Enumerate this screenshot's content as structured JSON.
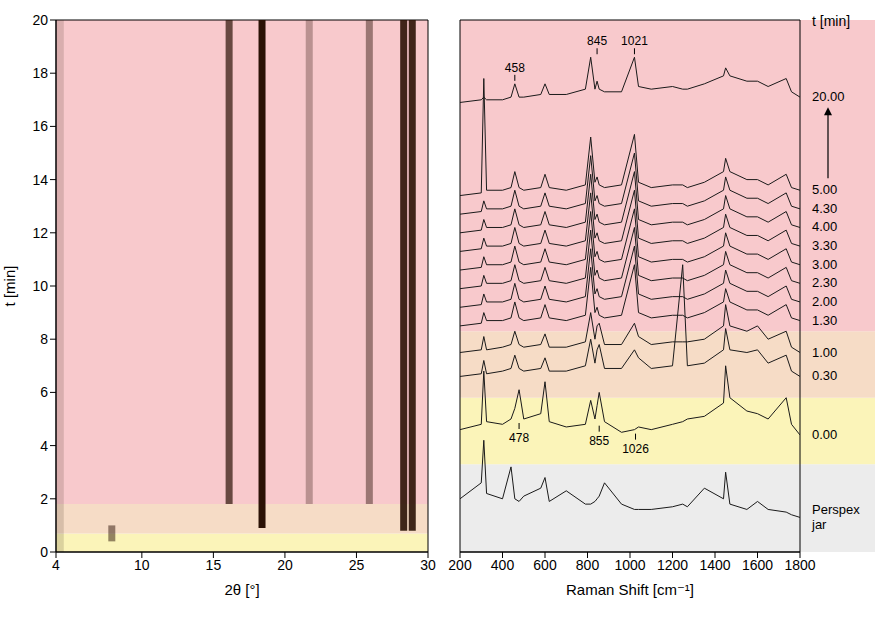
{
  "chart_data": [
    {
      "type": "heatmap",
      "xlabel": "2θ [°]",
      "ylabel": "t [min]",
      "xlim": [
        4,
        30
      ],
      "ylim": [
        0,
        20
      ],
      "xticks": [
        4,
        10,
        15,
        20,
        25,
        30
      ],
      "yticks": [
        0,
        2,
        4,
        6,
        8,
        10,
        12,
        14,
        16,
        18,
        20
      ],
      "color": "#2b1206",
      "bands": [
        {
          "from": 0,
          "to": 0.7,
          "color": "#fbf4b9"
        },
        {
          "from": 0.7,
          "to": 1.8,
          "color": "#f6dcc6"
        },
        {
          "from": 1.8,
          "to": 20,
          "color": "#f8c9cc"
        }
      ],
      "reflections": [
        {
          "two_theta": 4.3,
          "t_start": 0,
          "t_end": 20,
          "intensity": 0.15
        },
        {
          "two_theta": 7.9,
          "t_start": 0.4,
          "t_end": 1.0,
          "intensity": 0.5
        },
        {
          "two_theta": 16.1,
          "t_start": 1.8,
          "t_end": 20,
          "intensity": 0.7
        },
        {
          "two_theta": 18.4,
          "t_start": 0.9,
          "t_end": 20,
          "intensity": 1
        },
        {
          "two_theta": 21.7,
          "t_start": 1.8,
          "t_end": 20,
          "intensity": 0.3
        },
        {
          "two_theta": 25.9,
          "t_start": 1.8,
          "t_end": 20,
          "intensity": 0.45
        },
        {
          "two_theta": 28.3,
          "t_start": 0.8,
          "t_end": 20,
          "intensity": 0.9
        },
        {
          "two_theta": 28.9,
          "t_start": 0.8,
          "t_end": 20,
          "intensity": 0.9
        }
      ]
    },
    {
      "type": "line",
      "xlabel": "Raman Shift [cm⁻¹]",
      "series_title": "t [min]",
      "xlim": [
        200,
        1800
      ],
      "ylim": [
        0,
        20
      ],
      "xticks": [
        200,
        400,
        600,
        800,
        1000,
        1200,
        1400,
        1600,
        1800
      ],
      "tick_labels": "x",
      "color": "#1a1a1a",
      "bands": [
        {
          "from": 0,
          "to": 3.3,
          "color": "#ececec"
        },
        {
          "from": 3.3,
          "to": 5.8,
          "color": "#fbf4b9"
        },
        {
          "from": 5.8,
          "to": 8.3,
          "color": "#f6dcc6"
        },
        {
          "from": 8.3,
          "to": 20,
          "color": "#f8c9cc"
        }
      ],
      "x": [
        200,
        300,
        312,
        325,
        400,
        440,
        458,
        478,
        500,
        580,
        600,
        620,
        700,
        790,
        815,
        835,
        845,
        855,
        880,
        960,
        1021,
        1040,
        1100,
        1200,
        1248,
        1270,
        1350,
        1440,
        1450,
        1470,
        1550,
        1600,
        1650,
        1735,
        1760,
        1800
      ],
      "series": [
        {
          "name": "Perspex jar",
          "values": [
            2.0,
            2.6,
            4.2,
            2.2,
            2.0,
            3.2,
            2.0,
            1.9,
            2.1,
            2.4,
            2.8,
            1.9,
            2.3,
            1.8,
            1.8,
            1.9,
            2.0,
            2.1,
            2.6,
            1.8,
            1.6,
            1.6,
            1.6,
            1.7,
            1.8,
            1.7,
            2.4,
            2.0,
            3.0,
            1.8,
            1.6,
            1.9,
            1.6,
            1.5,
            1.4,
            1.3
          ]
        },
        {
          "name": "0.00",
          "peak_labels": [
            478,
            855,
            1026
          ],
          "values": [
            4.6,
            4.8,
            6.8,
            4.9,
            4.8,
            5.0,
            5.4,
            6.1,
            5.0,
            5.2,
            6.4,
            4.9,
            4.7,
            4.8,
            5.7,
            5.0,
            5.5,
            6.0,
            4.9,
            4.5,
            4.6,
            4.7,
            4.6,
            4.8,
            4.9,
            5.0,
            5.1,
            5.6,
            7.0,
            5.8,
            5.3,
            5.2,
            5.0,
            5.8,
            4.8,
            4.4
          ]
        },
        {
          "name": "0.30",
          "values": [
            6.6,
            6.7,
            7.2,
            6.7,
            6.8,
            6.9,
            7.4,
            6.9,
            6.8,
            6.9,
            7.3,
            6.8,
            6.8,
            7.0,
            8.0,
            7.1,
            7.6,
            7.8,
            6.9,
            6.9,
            7.6,
            7.3,
            6.9,
            7.0,
            10.8,
            7.0,
            7.1,
            7.6,
            8.4,
            7.6,
            7.5,
            7.6,
            7.1,
            7.4,
            6.8,
            6.6
          ]
        },
        {
          "name": "1.00",
          "values": [
            7.5,
            7.6,
            8.1,
            7.6,
            7.7,
            7.8,
            8.3,
            7.8,
            7.7,
            7.8,
            8.2,
            7.7,
            7.7,
            7.9,
            9.0,
            8.0,
            8.5,
            8.6,
            7.8,
            7.8,
            8.6,
            8.1,
            7.8,
            7.9,
            7.9,
            7.9,
            8.0,
            8.5,
            9.3,
            8.5,
            8.3,
            8.5,
            8.0,
            8.3,
            7.7,
            7.5
          ]
        },
        {
          "name": "1.30",
          "values": [
            8.5,
            8.6,
            9.0,
            8.7,
            8.7,
            8.8,
            9.4,
            8.8,
            8.7,
            8.8,
            9.3,
            8.8,
            8.7,
            8.9,
            10.7,
            9.0,
            9.2,
            8.9,
            8.8,
            8.9,
            10.8,
            9.0,
            8.8,
            8.9,
            8.9,
            8.8,
            9.0,
            9.4,
            9.9,
            9.4,
            9.1,
            9.1,
            8.9,
            9.3,
            8.8,
            8.7
          ]
        },
        {
          "name": "2.00",
          "values": [
            9.2,
            9.3,
            9.7,
            9.4,
            9.4,
            9.5,
            10.1,
            9.5,
            9.4,
            9.5,
            10.0,
            9.5,
            9.4,
            9.6,
            11.4,
            9.7,
            9.9,
            9.6,
            9.5,
            9.6,
            11.5,
            9.7,
            9.5,
            9.6,
            9.6,
            9.5,
            9.7,
            10.1,
            10.6,
            10.1,
            9.8,
            9.8,
            9.6,
            10.0,
            9.5,
            9.4
          ]
        },
        {
          "name": "2.30",
          "values": [
            9.9,
            10.0,
            10.4,
            10.1,
            10.1,
            10.2,
            10.8,
            10.2,
            10.1,
            10.2,
            10.7,
            10.2,
            10.1,
            10.3,
            12.1,
            10.4,
            10.6,
            10.3,
            10.2,
            10.3,
            12.2,
            10.4,
            10.2,
            10.3,
            10.3,
            10.2,
            10.4,
            10.8,
            11.3,
            10.8,
            10.5,
            10.5,
            10.3,
            10.7,
            10.2,
            10.1
          ]
        },
        {
          "name": "3.00",
          "values": [
            10.6,
            10.7,
            11.1,
            10.8,
            10.8,
            10.9,
            11.5,
            10.9,
            10.8,
            10.9,
            11.4,
            10.9,
            10.8,
            11.0,
            12.8,
            11.1,
            11.3,
            11.0,
            10.9,
            11.0,
            12.9,
            11.1,
            10.9,
            11.0,
            11.0,
            10.9,
            11.1,
            11.5,
            12.0,
            11.5,
            11.2,
            11.2,
            11.0,
            11.4,
            10.9,
            10.8
          ]
        },
        {
          "name": "3.30",
          "values": [
            11.3,
            11.4,
            11.8,
            11.5,
            11.5,
            11.6,
            12.2,
            11.6,
            11.5,
            11.6,
            12.1,
            11.6,
            11.5,
            11.7,
            13.5,
            11.8,
            12.0,
            11.7,
            11.6,
            11.7,
            13.6,
            11.8,
            11.6,
            11.7,
            11.7,
            11.6,
            11.8,
            12.2,
            12.7,
            12.2,
            11.9,
            11.9,
            11.7,
            12.1,
            11.6,
            11.5
          ]
        },
        {
          "name": "4.00",
          "values": [
            12.0,
            12.1,
            12.5,
            12.2,
            12.2,
            12.3,
            12.9,
            12.3,
            12.2,
            12.3,
            12.8,
            12.3,
            12.2,
            12.4,
            14.2,
            12.5,
            12.7,
            12.4,
            12.3,
            12.4,
            14.3,
            12.5,
            12.3,
            12.4,
            12.4,
            12.3,
            12.5,
            12.9,
            13.4,
            12.9,
            12.6,
            12.6,
            12.4,
            12.8,
            12.3,
            12.2
          ]
        },
        {
          "name": "4.30",
          "values": [
            12.7,
            12.8,
            13.2,
            12.9,
            12.9,
            13.0,
            13.6,
            13.0,
            12.9,
            13.0,
            13.5,
            13.0,
            12.9,
            13.1,
            14.9,
            13.2,
            13.4,
            13.1,
            13.0,
            13.1,
            15.0,
            13.2,
            13.0,
            13.1,
            13.1,
            13.0,
            13.2,
            13.6,
            14.1,
            13.6,
            13.3,
            13.3,
            13.1,
            13.5,
            13.0,
            12.9
          ]
        },
        {
          "name": "5.00",
          "values": [
            13.4,
            13.5,
            17.8,
            13.6,
            13.6,
            13.7,
            14.3,
            13.7,
            13.6,
            13.7,
            14.2,
            13.7,
            13.6,
            13.8,
            15.6,
            13.9,
            14.1,
            13.8,
            13.7,
            13.8,
            15.7,
            13.9,
            13.7,
            13.8,
            13.8,
            13.7,
            13.9,
            14.3,
            14.8,
            14.3,
            14.0,
            14.0,
            13.8,
            14.2,
            13.7,
            13.6
          ]
        },
        {
          "name": "20.00",
          "peak_labels": [
            458,
            845,
            1021
          ],
          "values": [
            16.9,
            17.0,
            17.1,
            17.0,
            17.0,
            17.1,
            17.6,
            17.1,
            17.1,
            17.2,
            17.6,
            17.2,
            17.2,
            17.4,
            18.6,
            17.4,
            17.7,
            17.4,
            17.3,
            17.3,
            18.6,
            17.5,
            17.4,
            17.5,
            17.4,
            17.4,
            17.6,
            17.9,
            18.2,
            17.9,
            17.7,
            17.7,
            17.5,
            17.8,
            17.3,
            17.1
          ]
        }
      ]
    }
  ]
}
